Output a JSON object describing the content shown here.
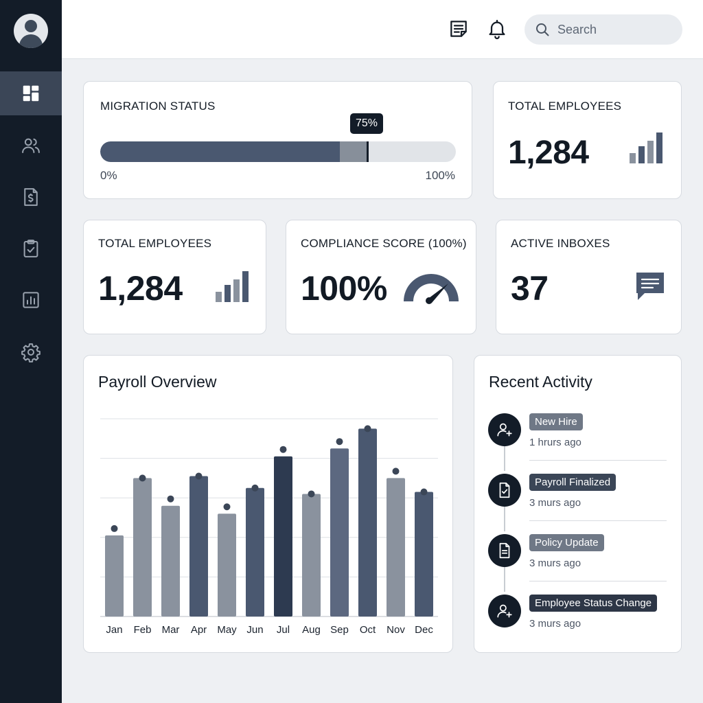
{
  "sidebar": {
    "items": [
      {
        "name": "dashboard-icon"
      },
      {
        "name": "users-icon"
      },
      {
        "name": "payroll-icon"
      },
      {
        "name": "clipboard-check-icon"
      },
      {
        "name": "reports-icon"
      },
      {
        "name": "settings-icon"
      }
    ]
  },
  "header": {
    "search_placeholder": "Search"
  },
  "migration": {
    "label": "MIGRATION STATUS",
    "progress_percent": 75,
    "progress_label": "75%",
    "min_label": "0%",
    "max_label": "100%"
  },
  "total_employees_top": {
    "label": "TOTAL EMPLOYEES",
    "value": "1,284"
  },
  "total_employees": {
    "label": "TOTAL EMPLOYEES",
    "value": "1,284"
  },
  "compliance": {
    "label": "COMPLIANCE SCORE (100%)",
    "value": "100%"
  },
  "inboxes": {
    "label": "ACTIVE INBOXES",
    "value": "37"
  },
  "payroll": {
    "title": "Payroll Overview"
  },
  "chart_data": {
    "type": "bar",
    "categories": [
      "Jan",
      "Feb",
      "Mar",
      "Apr",
      "May",
      "Jun",
      "Jul",
      "Aug",
      "Sep",
      "Oct",
      "Nov",
      "Dec"
    ],
    "values": [
      41,
      70,
      56,
      71,
      52,
      65,
      81,
      62,
      85,
      95,
      70,
      63
    ],
    "ylim": [
      0,
      100
    ],
    "grid": true,
    "colors": [
      "#8a929e",
      "#8a929e",
      "#8a929e",
      "#4a5870",
      "#8a929e",
      "#4a5870",
      "#2d3a50",
      "#8a929e",
      "#5c6880",
      "#4a5870",
      "#8a929e",
      "#4a5870"
    ]
  },
  "activity": {
    "title": "Recent Activity",
    "items": [
      {
        "tag": "New Hire",
        "time": "1 hrurs ago",
        "icon": "user-plus-icon",
        "color": "#6f7886"
      },
      {
        "tag": "Payroll Finalized",
        "time": "3 murs ago",
        "icon": "document-check-icon",
        "color": "#3b4657"
      },
      {
        "tag": "Policy Update",
        "time": "3 murs ago",
        "icon": "document-icon",
        "color": "#6f7886"
      },
      {
        "tag": "Employee Status Change",
        "time": "3 murs ago",
        "icon": "user-plus-icon",
        "color": "#2d3646"
      }
    ]
  }
}
